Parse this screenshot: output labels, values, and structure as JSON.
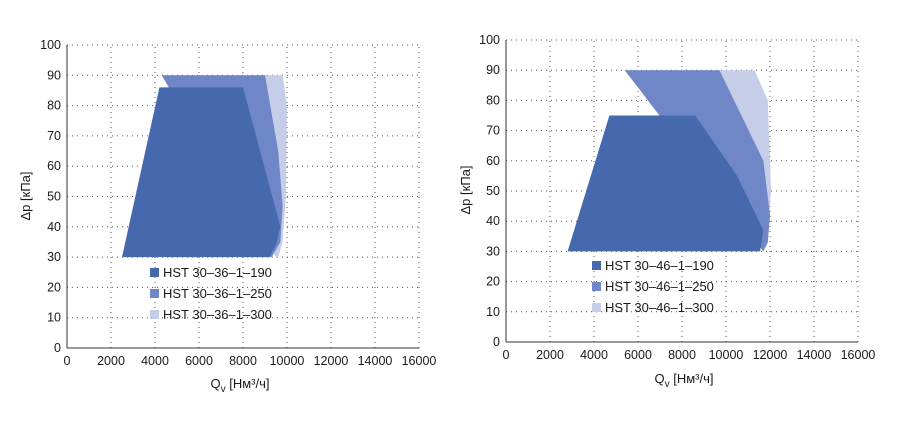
{
  "chart_data": [
    {
      "type": "area",
      "xlabel": "Q",
      "xlabel_sub": "v",
      "xlabel_unit": " [Нм³/ч]",
      "ylabel": "Δp [кПа]",
      "xlim": [
        0,
        16000
      ],
      "ylim": [
        0,
        100
      ],
      "xticks": [
        "0",
        "2000",
        "4000",
        "6000",
        "8000",
        "10000",
        "12000",
        "14000",
        "16000"
      ],
      "yticks": [
        "0",
        "10",
        "20",
        "30",
        "40",
        "50",
        "60",
        "70",
        "80",
        "90",
        "100"
      ],
      "grid": true,
      "legend_position": "bottom-left",
      "series": [
        {
          "name": "HST 30–36–1–300",
          "color": "#c5cde8",
          "points": [
            [
              4300,
              90
            ],
            [
              9800,
              90
            ],
            [
              10000,
              80
            ],
            [
              9950,
              50
            ],
            [
              9800,
              35
            ],
            [
              9600,
              30
            ],
            [
              9500,
              30
            ],
            [
              4300,
              90
            ]
          ]
        },
        {
          "name": "HST 30–36–1–250",
          "color": "#6f86c7",
          "points": [
            [
              4300,
              90
            ],
            [
              9000,
              90
            ],
            [
              9600,
              65
            ],
            [
              9800,
              47
            ],
            [
              9700,
              35
            ],
            [
              9300,
              30
            ],
            [
              9200,
              30
            ],
            [
              4300,
              90
            ]
          ]
        },
        {
          "name": "HST 30–36–1–190",
          "color": "#4668ad",
          "points": [
            [
              2500,
              30
            ],
            [
              4200,
              86
            ],
            [
              8000,
              86
            ],
            [
              9700,
              40
            ],
            [
              9500,
              34
            ],
            [
              9200,
              30
            ],
            [
              2500,
              30
            ]
          ]
        }
      ]
    },
    {
      "type": "area",
      "xlabel": "Q",
      "xlabel_sub": "v",
      "xlabel_unit": " [Нм³/ч]",
      "ylabel": "Δp [кПа]",
      "xlim": [
        0,
        16000
      ],
      "ylim": [
        0,
        100
      ],
      "xticks": [
        "0",
        "2000",
        "4000",
        "6000",
        "8000",
        "10000",
        "12000",
        "14000",
        "16000"
      ],
      "yticks": [
        "0",
        "10",
        "20",
        "30",
        "40",
        "50",
        "60",
        "70",
        "80",
        "90",
        "100"
      ],
      "grid": true,
      "legend_position": "bottom-left",
      "series": [
        {
          "name": "HST 30–46–1–300",
          "color": "#c5cde8",
          "points": [
            [
              5400,
              90
            ],
            [
              11300,
              90
            ],
            [
              11900,
              80
            ],
            [
              12050,
              50
            ],
            [
              11900,
              35
            ],
            [
              11700,
              30
            ],
            [
              5400,
              90
            ]
          ]
        },
        {
          "name": "HST 30–46–1–250",
          "color": "#6f86c7",
          "points": [
            [
              5400,
              90
            ],
            [
              9700,
              90
            ],
            [
              11700,
              60
            ],
            [
              12000,
              42
            ],
            [
              11900,
              33
            ],
            [
              11700,
              30
            ],
            [
              5400,
              90
            ]
          ]
        },
        {
          "name": "HST 30–46–1–190",
          "color": "#4668ad",
          "points": [
            [
              2800,
              30
            ],
            [
              4700,
              75
            ],
            [
              8600,
              75
            ],
            [
              10500,
              55
            ],
            [
              11700,
              37
            ],
            [
              11550,
              30
            ],
            [
              2800,
              30
            ]
          ]
        }
      ]
    }
  ]
}
